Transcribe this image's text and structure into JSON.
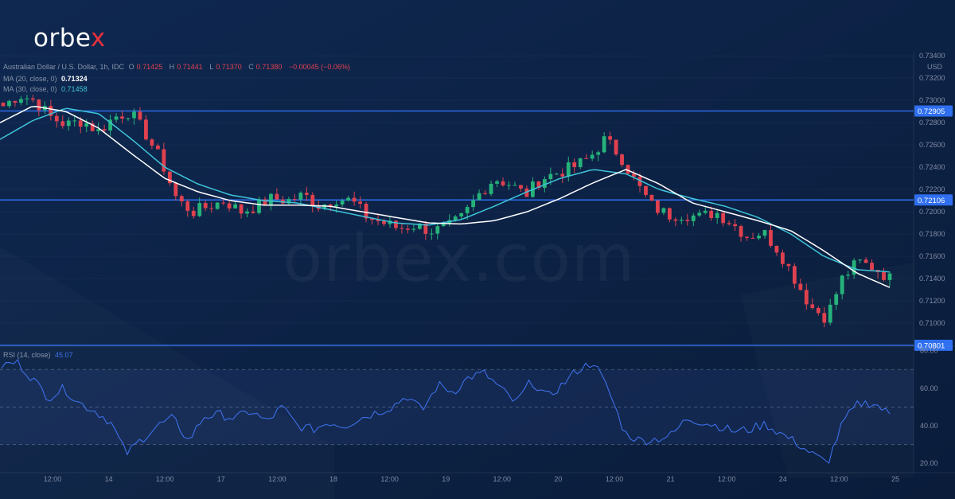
{
  "brand": {
    "logo_text": "orbex",
    "watermark_text": "orbex.com"
  },
  "colors": {
    "background": "#0d2245",
    "bull": "#26b37a",
    "bear": "#e0414f",
    "ma20": "#ffffff",
    "ma30": "#3fc4d9",
    "level": "#2f6ff0",
    "rsi": "#3d6fe8"
  },
  "legend": {
    "symbol": "Australian Dollar / U.S. Dollar, 1h, IDC",
    "o_label": "O",
    "o_value": "0.71425",
    "h_label": "H",
    "h_value": "0.71441",
    "l_label": "L",
    "l_value": "0.71370",
    "c_label": "C",
    "c_value": "0.71380",
    "change": "−0.00045 (−0.06%)",
    "ma20_label": "MA (20, close, 0)",
    "ma20_value": "0.71324",
    "ma30_label": "MA (30, close, 0)",
    "ma30_value": "0.71458",
    "rsi_label": "RSI (14, close)",
    "rsi_value": "45.07"
  },
  "chart_data": {
    "type": "candlestick",
    "currency": "USD",
    "price_axis_ticks": [
      "0.73400",
      "0.73200",
      "0.73000",
      "0.72800",
      "0.72600",
      "0.72400",
      "0.72200",
      "0.72000",
      "0.71800",
      "0.71600",
      "0.71400",
      "0.71200",
      "0.71000"
    ],
    "price_range": [
      0.708,
      0.7343
    ],
    "rsi_axis_ticks": [
      "80.00",
      "60.00",
      "40.00",
      "20.00"
    ],
    "rsi_range": [
      15,
      82
    ],
    "rsi_band": [
      30,
      70
    ],
    "time_ticks": [
      "12:00",
      "14",
      "12:00",
      "17",
      "12:00",
      "18",
      "12:00",
      "19",
      "12:00",
      "20",
      "12:00",
      "21",
      "12:00",
      "24",
      "12:00",
      "25"
    ],
    "horizontal_levels": [
      {
        "value": 0.72905,
        "label": "0.72905"
      },
      {
        "value": 0.72106,
        "label": "0.72106"
      },
      {
        "value": 0.70801,
        "label": "0.70801"
      }
    ],
    "close_anchors": [
      0.7295,
      0.7305,
      0.73,
      0.7285,
      0.7278,
      0.7282,
      0.7272,
      0.7285,
      0.729,
      0.727,
      0.7245,
      0.721,
      0.72,
      0.7205,
      0.721,
      0.72,
      0.7205,
      0.7212,
      0.721,
      0.7215,
      0.7205,
      0.7212,
      0.721,
      0.7195,
      0.719,
      0.7185,
      0.7188,
      0.7183,
      0.7185,
      0.7195,
      0.7215,
      0.723,
      0.7225,
      0.7215,
      0.723,
      0.7235,
      0.724,
      0.7248,
      0.7265,
      0.725,
      0.7225,
      0.7205,
      0.7197,
      0.7198,
      0.7195,
      0.72,
      0.719,
      0.7178,
      0.7182,
      0.7165,
      0.714,
      0.7115,
      0.7105,
      0.714,
      0.7155,
      0.715,
      0.714
    ],
    "ma20_anchors": [
      0.728,
      0.7295,
      0.729,
      0.7275,
      0.7252,
      0.723,
      0.7218,
      0.721,
      0.7206,
      0.7206,
      0.7205,
      0.72,
      0.7195,
      0.719,
      0.7189,
      0.7192,
      0.72,
      0.7212,
      0.7226,
      0.7238,
      0.7225,
      0.7208,
      0.72,
      0.7192,
      0.7183,
      0.7165,
      0.7145,
      0.7132
    ],
    "ma30_anchors": [
      0.7265,
      0.7282,
      0.7293,
      0.7288,
      0.7265,
      0.724,
      0.7225,
      0.7215,
      0.721,
      0.7208,
      0.7202,
      0.7196,
      0.719,
      0.7188,
      0.7193,
      0.7205,
      0.7218,
      0.723,
      0.7238,
      0.7234,
      0.722,
      0.7212,
      0.7205,
      0.7195,
      0.718,
      0.716,
      0.7148,
      0.7146
    ],
    "rsi_anchors": [
      72,
      74,
      65,
      55,
      60,
      52,
      48,
      42,
      25,
      33,
      40,
      44,
      32,
      45,
      46,
      44,
      48,
      42,
      50,
      40,
      38,
      42,
      40,
      44,
      47,
      50,
      56,
      48,
      62,
      58,
      66,
      68,
      60,
      52,
      64,
      55,
      62,
      70,
      74,
      58,
      36,
      32,
      33,
      35,
      44,
      42,
      40,
      37,
      38,
      41,
      36,
      31,
      25,
      20,
      42,
      52,
      52,
      46
    ]
  }
}
